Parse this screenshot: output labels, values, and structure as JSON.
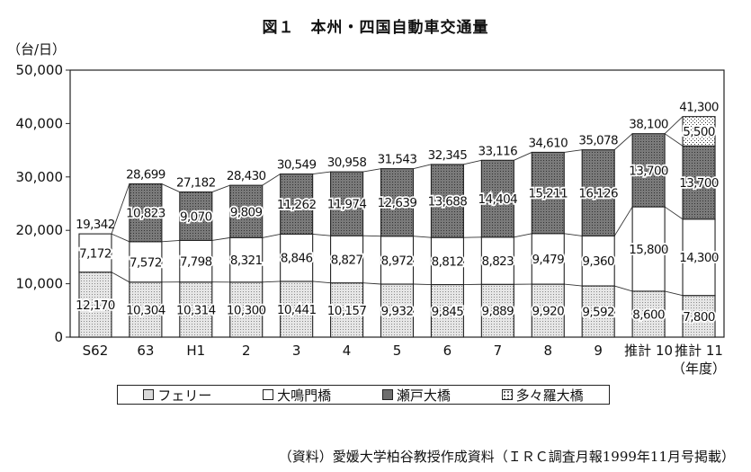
{
  "title": "図１　本州・四国自動車交通量",
  "unit_label": "（台/日）",
  "footnote": "（資料）愛媛大学柏谷教授作成資料（ＩＲＣ調査月報1999年11月号掲載）",
  "colors": {
    "ferry": "#d9d9d9",
    "onaruto": "#ffffff",
    "seto": "#6e6e6e",
    "tatara": "#f3f3f3",
    "outline": "#222222"
  },
  "chart_data": {
    "type": "bar",
    "stacked": true,
    "title": "図１　本州・四国自動車交通量",
    "ylabel": "（台/日）",
    "xlabel": "（年度）",
    "ylim": [
      0,
      50000
    ],
    "yticks": [
      "0",
      "10,000",
      "20,000",
      "30,000",
      "40,000",
      "50,000"
    ],
    "grid": false,
    "legend_position": "bottom",
    "categories": [
      "S62",
      "63",
      "H1",
      "2",
      "3",
      "4",
      "5",
      "6",
      "7",
      "8",
      "9",
      "推計 10",
      "推計 11"
    ],
    "series": [
      {
        "name": "フェリー",
        "pattern": "light-dots",
        "values": [
          12170,
          10304,
          10314,
          10300,
          10441,
          10157,
          9932,
          9845,
          9889,
          9920,
          9592,
          8600,
          7800
        ],
        "labels": [
          "12,170",
          "10,304",
          "10,314",
          "10,300",
          "10,441",
          "10,157",
          "9,932",
          "9,845",
          "9,889",
          "9,920",
          "9,592",
          "8,600",
          "7,800"
        ]
      },
      {
        "name": "大鳴門橋",
        "pattern": "white",
        "values": [
          7172,
          7572,
          7798,
          8321,
          8846,
          8827,
          8972,
          8812,
          8823,
          9479,
          9360,
          15800,
          14300
        ],
        "labels": [
          "7,172",
          "7,572",
          "7,798",
          "8,321",
          "8,846",
          "8,827",
          "8,972",
          "8,812",
          "8,823",
          "9,479",
          "9,360",
          "15,800",
          "14,300"
        ]
      },
      {
        "name": "瀬戸大橋",
        "pattern": "dark",
        "values": [
          0,
          10823,
          9070,
          9809,
          11262,
          11974,
          12639,
          13688,
          14404,
          15211,
          16126,
          13700,
          13700
        ],
        "labels": [
          "",
          "10,823",
          "9,070",
          "9,809",
          "11,262",
          "11,974",
          "12,639",
          "13,688",
          "14,404",
          "15,211",
          "16,126",
          "13,700",
          "13,700"
        ]
      },
      {
        "name": "多々羅大橋",
        "pattern": "sparse-dots",
        "values": [
          0,
          0,
          0,
          0,
          0,
          0,
          0,
          0,
          0,
          0,
          0,
          0,
          5500
        ],
        "labels": [
          "",
          "",
          "",
          "",
          "",
          "",
          "",
          "",
          "",
          "",
          "",
          "",
          "5,500"
        ]
      }
    ],
    "totals": [
      19342,
      28699,
      27182,
      28430,
      30549,
      30958,
      31543,
      32345,
      33116,
      34610,
      35078,
      38100,
      41300
    ],
    "total_labels": [
      "19,342",
      "28,699",
      "27,182",
      "28,430",
      "30,549",
      "30,958",
      "31,543",
      "32,345",
      "33,116",
      "34,610",
      "35,078",
      "38,100",
      "41,300"
    ]
  }
}
